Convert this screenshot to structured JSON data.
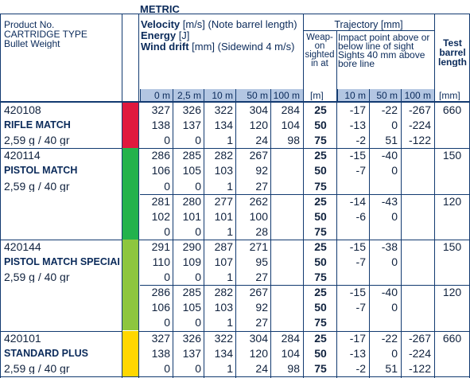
{
  "title": "METRIC",
  "header": {
    "product": [
      "Product No.",
      "CARTRIDGE TYPE",
      "Bullet Weight"
    ],
    "velocity_label": "Velocity",
    "velocity_rest": " [m/s] (Note barrel length)",
    "energy_label": "Energy",
    "energy_rest": " [J]",
    "wind_label": "Wind drift",
    "wind_rest": " [mm] (Sidewind 4 m/s)",
    "trajectory": "Trajectory  [mm]",
    "weapon": [
      "Weap-",
      "on",
      "sighted",
      "in at"
    ],
    "impact": [
      "Impact point above or",
      "below line of sight",
      "Sights 40 mm above",
      "bore line"
    ],
    "test": [
      "Test",
      "barrel",
      "length"
    ],
    "distances": [
      "0 m",
      "2,5 m",
      "10 m",
      "50 m",
      "100 m"
    ],
    "unit_m": "[m]",
    "traj_distances": [
      "10 m",
      "50 m",
      "100 m"
    ],
    "unit_mm": "[mm]"
  },
  "colors": {
    "ink": "#0a2a5a",
    "header_band": "#b3c6e2",
    "red": "#e0193e",
    "green": "#23b24c",
    "lightgreen": "#8dc63f",
    "yellow": "#ffd700"
  },
  "products": [
    {
      "no": "420108",
      "type": "RIFLE MATCH",
      "weight": "2,59 g / 40 gr",
      "color": "#e0193e",
      "blocks": [
        {
          "test": "660",
          "rows": [
            {
              "v": [
                "327",
                "326",
                "322",
                "304",
                "284"
              ],
              "s": "25",
              "t": [
                "-17",
                "-22",
                "-267"
              ]
            },
            {
              "v": [
                "138",
                "137",
                "134",
                "120",
                "104"
              ],
              "s": "50",
              "t": [
                "-13",
                "0",
                "-224"
              ]
            },
            {
              "v": [
                "0",
                "0",
                "1",
                "24",
                "98"
              ],
              "s": "75",
              "t": [
                "-2",
                "51",
                "-122"
              ]
            }
          ]
        }
      ]
    },
    {
      "no": "420114",
      "type": "PISTOL MATCH",
      "weight": "2,59 g / 40 gr",
      "color": "#23b24c",
      "blocks": [
        {
          "test": "150",
          "rows": [
            {
              "v": [
                "286",
                "285",
                "282",
                "267",
                ""
              ],
              "s": "25",
              "t": [
                "-15",
                "-40",
                ""
              ]
            },
            {
              "v": [
                "106",
                "105",
                "103",
                "92",
                ""
              ],
              "s": "50",
              "t": [
                "-7",
                "0",
                ""
              ]
            },
            {
              "v": [
                "0",
                "0",
                "1",
                "27",
                ""
              ],
              "s": "75",
              "t": [
                "",
                "",
                ""
              ]
            }
          ]
        },
        {
          "test": "120",
          "rows": [
            {
              "v": [
                "281",
                "280",
                "277",
                "262",
                ""
              ],
              "s": "25",
              "t": [
                "-14",
                "-43",
                ""
              ]
            },
            {
              "v": [
                "102",
                "101",
                "101",
                "100",
                ""
              ],
              "s": "50",
              "t": [
                "-6",
                "0",
                ""
              ]
            },
            {
              "v": [
                "0",
                "0",
                "1",
                "28",
                ""
              ],
              "s": "75",
              "t": [
                "",
                "",
                ""
              ]
            }
          ]
        }
      ]
    },
    {
      "no": "420144",
      "type": "PISTOL MATCH SPECIAL",
      "weight": "2,59 g / 40 gr",
      "color": "#8dc63f",
      "blocks": [
        {
          "test": "150",
          "rows": [
            {
              "v": [
                "291",
                "290",
                "287",
                "271",
                ""
              ],
              "s": "25",
              "t": [
                "-15",
                "-38",
                ""
              ]
            },
            {
              "v": [
                "110",
                "109",
                "107",
                "95",
                ""
              ],
              "s": "50",
              "t": [
                "-7",
                "0",
                ""
              ]
            },
            {
              "v": [
                "0",
                "0",
                "1",
                "27",
                ""
              ],
              "s": "75",
              "t": [
                "",
                "",
                ""
              ]
            }
          ]
        },
        {
          "test": "120",
          "rows": [
            {
              "v": [
                "286",
                "285",
                "282",
                "267",
                ""
              ],
              "s": "25",
              "t": [
                "-15",
                "-40",
                ""
              ]
            },
            {
              "v": [
                "106",
                "105",
                "103",
                "92",
                ""
              ],
              "s": "50",
              "t": [
                "-7",
                "0",
                ""
              ]
            },
            {
              "v": [
                "0",
                "0",
                "1",
                "27",
                ""
              ],
              "s": "75",
              "t": [
                "",
                "",
                ""
              ]
            }
          ]
        }
      ]
    },
    {
      "no": "420101",
      "type": "STANDARD PLUS",
      "weight": "2,59 g / 40 gr",
      "color": "#ffd700",
      "blocks": [
        {
          "test": "660",
          "rows": [
            {
              "v": [
                "327",
                "326",
                "322",
                "304",
                "284"
              ],
              "s": "25",
              "t": [
                "-17",
                "-22",
                "-267"
              ]
            },
            {
              "v": [
                "138",
                "137",
                "134",
                "120",
                "104"
              ],
              "s": "50",
              "t": [
                "-13",
                "0",
                "-224"
              ]
            },
            {
              "v": [
                "0",
                "0",
                "1",
                "24",
                "98"
              ],
              "s": "75",
              "t": [
                "-2",
                "51",
                "-122"
              ]
            }
          ]
        }
      ]
    }
  ]
}
